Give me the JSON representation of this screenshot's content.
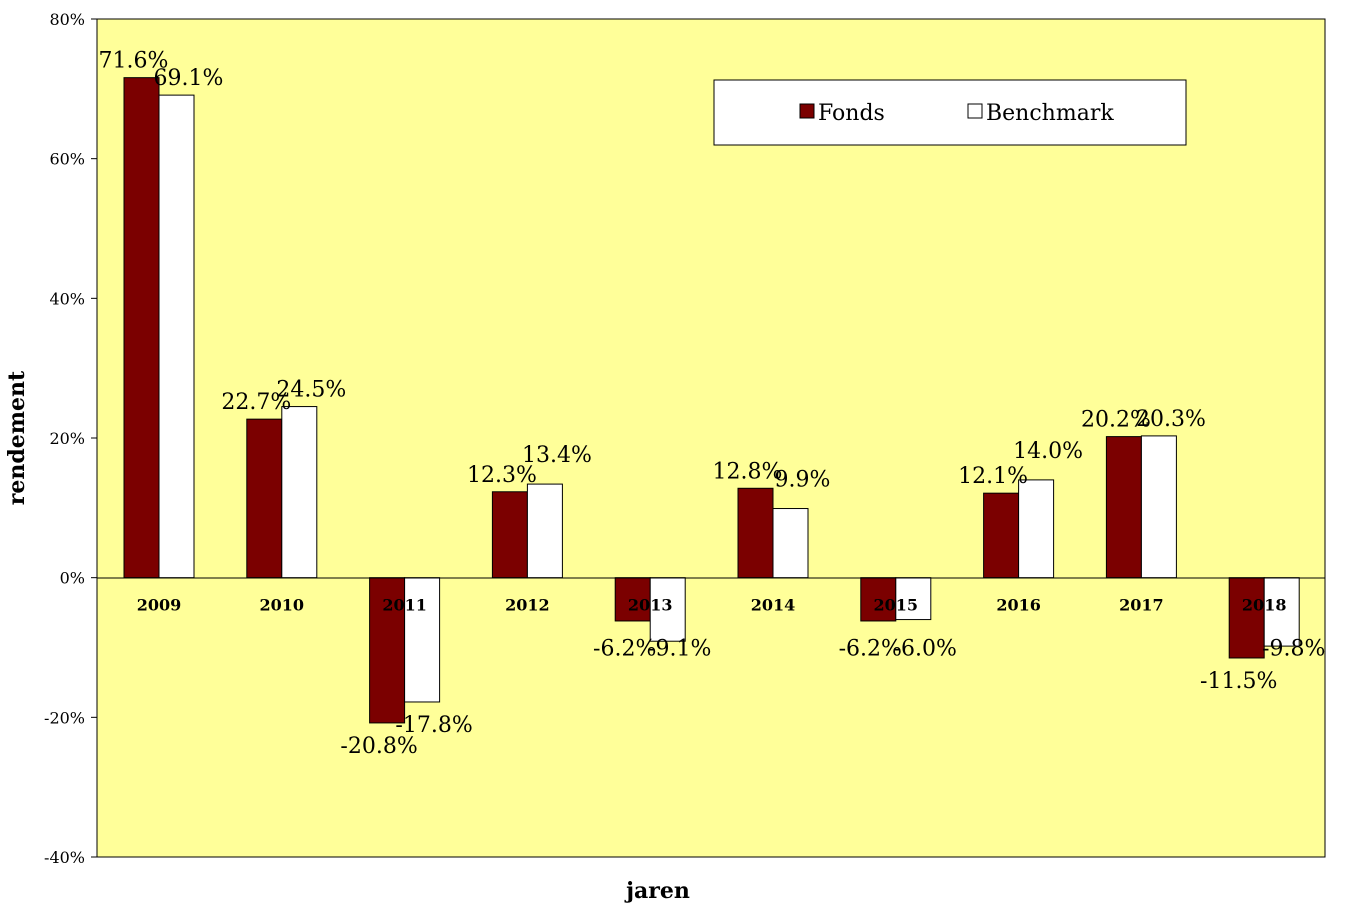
{
  "chart_data": {
    "type": "bar",
    "title": "",
    "xlabel": "jaren",
    "ylabel": "rendement",
    "categories": [
      "2009",
      "2010",
      "2011",
      "2012",
      "2013",
      "2014",
      "2015",
      "2016",
      "2017",
      "2018"
    ],
    "series": [
      {
        "name": "Fonds",
        "color": "#7b0000",
        "values": [
          71.6,
          22.7,
          -20.8,
          12.3,
          -6.2,
          12.8,
          -6.2,
          12.1,
          20.2,
          -11.5
        ],
        "labels": [
          "71.6%",
          "22.7%",
          "-20.8%",
          "12.3%",
          "-6.2%",
          "12.8%",
          "-6.2%",
          "12.1%",
          "20.2%",
          "-11.5%"
        ]
      },
      {
        "name": "Benchmark",
        "color": "#ffffff",
        "values": [
          69.1,
          24.5,
          -17.8,
          13.4,
          -9.1,
          9.9,
          -6.0,
          14.0,
          20.3,
          -9.8
        ],
        "labels": [
          "69.1%",
          "24.5%",
          "-17.8%",
          "13.4%",
          "-9.1%",
          "9.9%",
          "-6.0%",
          "14.0%",
          "20.3%",
          "-9.8%"
        ]
      }
    ],
    "ylim": [
      -40,
      80
    ],
    "yticks": [
      -40,
      -20,
      0,
      20,
      40,
      60,
      80
    ],
    "ytick_labels": [
      "-40%",
      "-20%",
      "0%",
      "20%",
      "40%",
      "60%",
      "80%"
    ],
    "grid": false,
    "legend_position": "top-right",
    "plot_background": "#ffff99"
  }
}
